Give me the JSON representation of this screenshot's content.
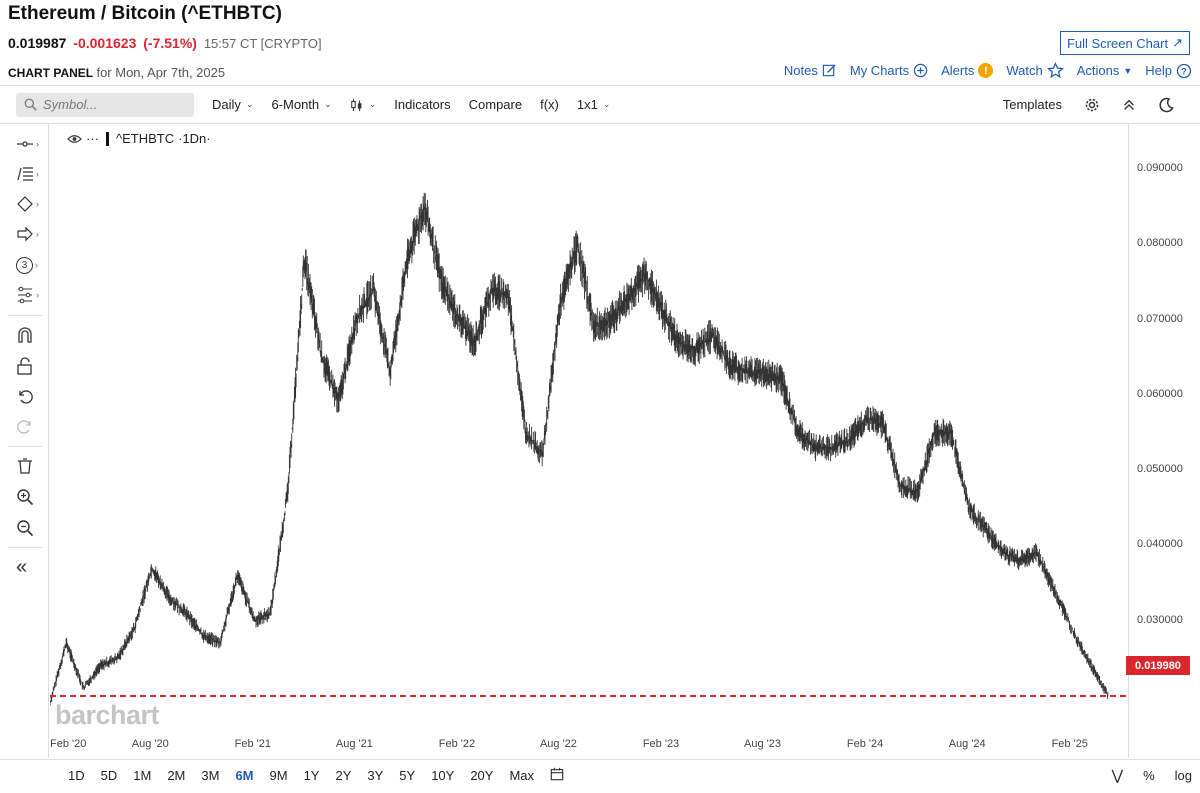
{
  "header": {
    "title": "Ethereum / Bitcoin (^ETHBTC)",
    "last_price": "0.019987",
    "change": "-0.001623",
    "change_pct": "(-7.51%)",
    "time": "15:57 CT [CRYPTO]",
    "fullscreen_label": "Full Screen Chart",
    "panel_label": "CHART PANEL",
    "panel_date": "for Mon, Apr 7th, 2025"
  },
  "toplinks": {
    "notes": "Notes",
    "my_charts": "My Charts",
    "alerts": "Alerts",
    "alerts_badge": "!",
    "watch": "Watch",
    "actions": "Actions",
    "help": "Help"
  },
  "toolbar": {
    "search_placeholder": "Symbol...",
    "interval": "Daily",
    "period": "6-Month",
    "indicators": "Indicators",
    "compare": "Compare",
    "fx": "f(x)",
    "layout": "1x1",
    "templates": "Templates"
  },
  "sidebar": {
    "tools": [
      "line-tool",
      "fib-tool",
      "shape-tool",
      "arrow-tool",
      "count-tool",
      "pattern-tool",
      "magnet",
      "lock",
      "undo",
      "redo",
      "delete",
      "zoom-in",
      "zoom-out",
      "collapse"
    ],
    "count_label": "3",
    "collapse_label": "«"
  },
  "legend": {
    "dots": "···",
    "symbol": "^ETHBTC",
    "interval": "·1Dn·"
  },
  "watermark": "barchart",
  "price_line": "0.019980",
  "range_buttons": [
    "1D",
    "5D",
    "1M",
    "2M",
    "3M",
    "6M",
    "9M",
    "1Y",
    "2Y",
    "3Y",
    "5Y",
    "10Y",
    "20Y",
    "Max"
  ],
  "range_active": "6M",
  "bottom_right": {
    "percent": "%",
    "log": "log"
  },
  "chart_data": {
    "type": "line",
    "title": "",
    "ylim": [
      0.012,
      0.096
    ],
    "y_ticks": [
      "0.090000",
      "0.080000",
      "0.070000",
      "0.060000",
      "0.050000",
      "0.040000",
      "0.030000"
    ],
    "y_tick_values": [
      0.09,
      0.08,
      0.07,
      0.06,
      0.05,
      0.04,
      0.03
    ],
    "x_ticks": [
      "Feb '20",
      "Aug '20",
      "Feb '21",
      "Aug '21",
      "Feb '22",
      "Aug '22",
      "Feb '23",
      "Aug '23",
      "Feb '24",
      "Aug '24",
      "Feb '25"
    ],
    "x_tick_dates": [
      "2020-02-01",
      "2020-08-01",
      "2021-02-01",
      "2021-08-01",
      "2022-02-01",
      "2022-08-01",
      "2023-02-01",
      "2023-08-01",
      "2024-02-01",
      "2024-08-01",
      "2025-02-01"
    ],
    "xlim": [
      "2020-02-01",
      "2025-04-25"
    ],
    "reference_line": {
      "value": 0.01998,
      "color": "#d9272e",
      "style": "dashed"
    },
    "series": [
      {
        "line_color": "#333333",
        "x": [
          "2020-02-01",
          "2020-03-01",
          "2020-04-01",
          "2020-05-01",
          "2020-06-01",
          "2020-07-01",
          "2020-08-01",
          "2020-09-01",
          "2020-10-01",
          "2020-11-01",
          "2020-12-01",
          "2021-01-01",
          "2021-02-01",
          "2021-03-01",
          "2021-04-01",
          "2021-05-01",
          "2021-06-01",
          "2021-07-01",
          "2021-08-01",
          "2021-09-01",
          "2021-10-01",
          "2021-11-01",
          "2021-12-01",
          "2022-01-01",
          "2022-02-01",
          "2022-03-01",
          "2022-04-01",
          "2022-05-01",
          "2022-06-01",
          "2022-07-01",
          "2022-08-01",
          "2022-09-01",
          "2022-10-01",
          "2022-11-01",
          "2022-12-01",
          "2023-01-01",
          "2023-02-01",
          "2023-03-01",
          "2023-04-01",
          "2023-05-01",
          "2023-06-01",
          "2023-07-01",
          "2023-08-01",
          "2023-09-01",
          "2023-10-01",
          "2023-11-01",
          "2023-12-01",
          "2024-01-01",
          "2024-02-01",
          "2024-03-01",
          "2024-04-01",
          "2024-05-01",
          "2024-06-01",
          "2024-07-01",
          "2024-08-01",
          "2024-09-01",
          "2024-10-01",
          "2024-11-01",
          "2024-12-01",
          "2025-01-01",
          "2025-02-01",
          "2025-03-01",
          "2025-04-07"
        ],
        "values": [
          0.019,
          0.027,
          0.021,
          0.024,
          0.025,
          0.029,
          0.037,
          0.033,
          0.031,
          0.028,
          0.027,
          0.036,
          0.03,
          0.031,
          0.047,
          0.078,
          0.065,
          0.059,
          0.07,
          0.074,
          0.063,
          0.078,
          0.085,
          0.075,
          0.07,
          0.067,
          0.074,
          0.073,
          0.055,
          0.052,
          0.072,
          0.08,
          0.069,
          0.07,
          0.073,
          0.076,
          0.071,
          0.067,
          0.066,
          0.068,
          0.064,
          0.063,
          0.063,
          0.062,
          0.055,
          0.053,
          0.053,
          0.054,
          0.057,
          0.056,
          0.048,
          0.047,
          0.055,
          0.055,
          0.045,
          0.042,
          0.039,
          0.038,
          0.039,
          0.034,
          0.029,
          0.025,
          0.01999
        ]
      }
    ]
  }
}
